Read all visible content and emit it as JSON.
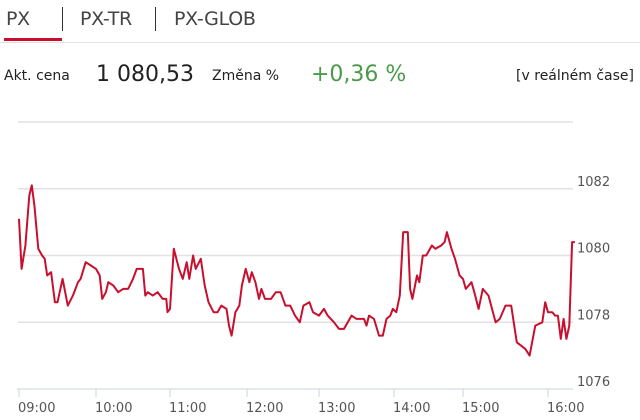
{
  "tabs": [
    {
      "label": "PX",
      "active": true
    },
    {
      "label": "PX-TR",
      "active": false
    },
    {
      "label": "PX-GLOB",
      "active": false
    }
  ],
  "info": {
    "price_label": "Akt. cena",
    "price": "1 080,53",
    "change_label": "Změna %",
    "change": "+0,36 %",
    "realtime": "[v reálném čase]"
  },
  "colors": {
    "accent": "#c8102e",
    "positive": "#4a9a4a",
    "line": "#c8102e",
    "grid": "#e2e2e2"
  },
  "chart_data": {
    "type": "line",
    "title": "",
    "xlabel": "",
    "ylabel": "",
    "ylim": [
      1076,
      1084
    ],
    "y_ticks": [
      1076,
      1078,
      1080,
      1082
    ],
    "x_ticks": [
      "09:00",
      "10:00",
      "11:00",
      "12:00",
      "13:00",
      "14:00",
      "15:00",
      "16:00"
    ],
    "grid": true,
    "y_axis_side": "right",
    "series": [
      {
        "points": [
          [
            "09:00",
            1081.1
          ],
          [
            "09:02",
            1079.6
          ],
          [
            "09:05",
            1080.3
          ],
          [
            "09:08",
            1081.8
          ],
          [
            "09:10",
            1082.1
          ],
          [
            "09:12",
            1081.5
          ],
          [
            "09:15",
            1080.2
          ],
          [
            "09:18",
            1080.0
          ],
          [
            "09:20",
            1079.9
          ],
          [
            "09:22",
            1079.4
          ],
          [
            "09:25",
            1079.5
          ],
          [
            "09:28",
            1078.6
          ],
          [
            "09:30",
            1078.6
          ],
          [
            "09:34",
            1079.3
          ],
          [
            "09:38",
            1078.5
          ],
          [
            "09:42",
            1078.8
          ],
          [
            "09:46",
            1079.2
          ],
          [
            "09:48",
            1079.3
          ],
          [
            "09:52",
            1079.8
          ],
          [
            "09:56",
            1079.7
          ],
          [
            "10:00",
            1079.6
          ],
          [
            "10:03",
            1079.4
          ],
          [
            "10:05",
            1078.7
          ],
          [
            "10:08",
            1078.9
          ],
          [
            "10:10",
            1079.2
          ],
          [
            "10:14",
            1079.1
          ],
          [
            "10:18",
            1078.9
          ],
          [
            "10:22",
            1079.0
          ],
          [
            "10:26",
            1079.0
          ],
          [
            "10:30",
            1079.3
          ],
          [
            "10:33",
            1079.6
          ],
          [
            "10:38",
            1079.6
          ],
          [
            "10:40",
            1078.8
          ],
          [
            "10:42",
            1078.9
          ],
          [
            "10:46",
            1078.8
          ],
          [
            "10:50",
            1078.9
          ],
          [
            "10:54",
            1078.7
          ],
          [
            "10:57",
            1078.7
          ],
          [
            "10:58",
            1078.3
          ],
          [
            "11:00",
            1078.4
          ],
          [
            "11:03",
            1080.2
          ],
          [
            "11:07",
            1079.6
          ],
          [
            "11:10",
            1079.3
          ],
          [
            "11:13",
            1079.8
          ],
          [
            "11:15",
            1079.3
          ],
          [
            "11:18",
            1080.0
          ],
          [
            "11:20",
            1079.6
          ],
          [
            "11:24",
            1079.9
          ],
          [
            "11:27",
            1079.1
          ],
          [
            "11:30",
            1078.6
          ],
          [
            "11:34",
            1078.3
          ],
          [
            "11:37",
            1078.3
          ],
          [
            "11:40",
            1078.5
          ],
          [
            "11:44",
            1078.4
          ],
          [
            "11:46",
            1077.9
          ],
          [
            "11:48",
            1077.6
          ],
          [
            "11:51",
            1078.3
          ],
          [
            "11:54",
            1078.5
          ],
          [
            "11:56",
            1079.1
          ],
          [
            "11:59",
            1079.6
          ],
          [
            "12:02",
            1079.2
          ],
          [
            "12:04",
            1079.5
          ],
          [
            "12:07",
            1079.2
          ],
          [
            "12:10",
            1078.7
          ],
          [
            "12:12",
            1079.0
          ],
          [
            "12:15",
            1078.7
          ],
          [
            "12:20",
            1078.7
          ],
          [
            "12:24",
            1078.9
          ],
          [
            "12:28",
            1078.9
          ],
          [
            "12:32",
            1078.5
          ],
          [
            "12:36",
            1078.5
          ],
          [
            "12:40",
            1078.2
          ],
          [
            "12:44",
            1078.0
          ],
          [
            "12:47",
            1078.5
          ],
          [
            "12:52",
            1078.6
          ],
          [
            "12:55",
            1078.3
          ],
          [
            "13:00",
            1078.2
          ],
          [
            "13:04",
            1078.4
          ],
          [
            "13:07",
            1078.2
          ],
          [
            "13:12",
            1078.0
          ],
          [
            "13:16",
            1077.8
          ],
          [
            "13:20",
            1077.8
          ],
          [
            "13:26",
            1078.2
          ],
          [
            "13:30",
            1078.1
          ],
          [
            "13:36",
            1078.1
          ],
          [
            "13:38",
            1077.9
          ],
          [
            "13:40",
            1078.2
          ],
          [
            "13:44",
            1078.1
          ],
          [
            "13:48",
            1077.6
          ],
          [
            "13:51",
            1077.6
          ],
          [
            "13:54",
            1078.1
          ],
          [
            "13:57",
            1078.2
          ],
          [
            "13:59",
            1078.4
          ],
          [
            "14:02",
            1078.3
          ],
          [
            "14:05",
            1078.8
          ],
          [
            "14:08",
            1080.7
          ],
          [
            "14:12",
            1080.7
          ],
          [
            "14:14",
            1079.0
          ],
          [
            "14:16",
            1078.7
          ],
          [
            "14:20",
            1079.4
          ],
          [
            "14:22",
            1079.2
          ],
          [
            "14:25",
            1080.0
          ],
          [
            "14:28",
            1080.0
          ],
          [
            "14:33",
            1080.3
          ],
          [
            "14:36",
            1080.2
          ],
          [
            "14:41",
            1080.3
          ],
          [
            "14:44",
            1080.4
          ],
          [
            "14:46",
            1080.7
          ],
          [
            "14:50",
            1080.2
          ],
          [
            "14:53",
            1079.9
          ],
          [
            "14:57",
            1079.4
          ],
          [
            "15:00",
            1079.3
          ],
          [
            "15:02",
            1079.0
          ],
          [
            "15:06",
            1079.2
          ],
          [
            "15:08",
            1078.9
          ],
          [
            "15:11",
            1078.4
          ],
          [
            "15:14",
            1079.0
          ],
          [
            "15:18",
            1078.8
          ],
          [
            "15:23",
            1078.0
          ],
          [
            "15:26",
            1078.1
          ],
          [
            "15:30",
            1078.5
          ],
          [
            "15:34",
            1078.5
          ],
          [
            "15:38",
            1077.4
          ],
          [
            "15:44",
            1077.2
          ],
          [
            "15:47",
            1077.0
          ],
          [
            "15:51",
            1077.9
          ],
          [
            "15:56",
            1078.0
          ],
          [
            "15:58",
            1078.6
          ],
          [
            "16:00",
            1078.3
          ],
          [
            "16:03",
            1078.3
          ],
          [
            "16:05",
            1078.2
          ],
          [
            "16:07",
            1078.2
          ],
          [
            "16:09",
            1077.5
          ],
          [
            "16:11",
            1078.1
          ],
          [
            "16:13",
            1077.5
          ],
          [
            "16:15",
            1077.9
          ],
          [
            "16:17",
            1080.4
          ],
          [
            "16:19",
            1080.4
          ]
        ]
      }
    ]
  }
}
